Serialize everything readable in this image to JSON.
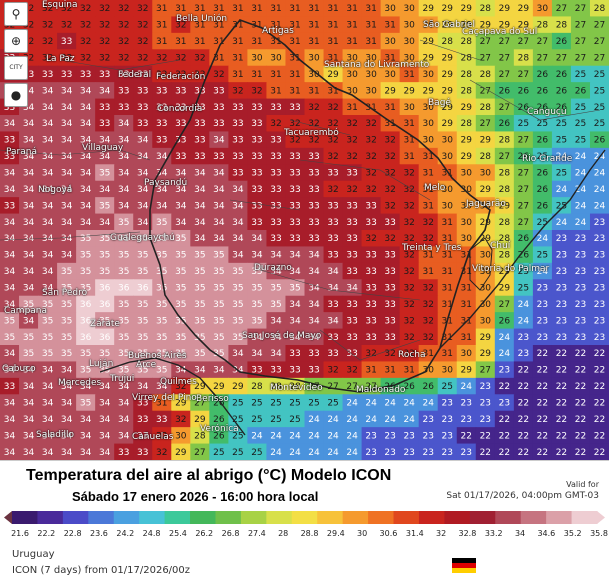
{
  "toolbar": {
    "items": [
      {
        "icon": "location-pin-icon",
        "glyph": "⚲"
      },
      {
        "icon": "zoom-icon",
        "glyph": "⊕"
      },
      {
        "icon": "city-labels-icon",
        "glyph": "CITY"
      },
      {
        "icon": "point-marker-icon",
        "glyph": "●"
      }
    ]
  },
  "map": {
    "places": [
      {
        "name": "Esquina"
      },
      {
        "name": "Bella Unión"
      },
      {
        "name": "La Paz"
      },
      {
        "name": "Artigas"
      },
      {
        "name": "São Gabriel"
      },
      {
        "name": "Caçapava do Sul"
      },
      {
        "name": "Federal"
      },
      {
        "name": "Federación"
      },
      {
        "name": "Santana do Livramento"
      },
      {
        "name": "Bagé"
      },
      {
        "name": "Concordia"
      },
      {
        "name": "Canguçu"
      },
      {
        "name": "Paraná"
      },
      {
        "name": "Villaguay"
      },
      {
        "name": "Tacuarembó"
      },
      {
        "name": "Rio Grande"
      },
      {
        "name": "Paysandú"
      },
      {
        "name": "Nogoyá"
      },
      {
        "name": "Melo"
      },
      {
        "name": "Jaguarão"
      },
      {
        "name": "Gualeguaychú"
      },
      {
        "name": "Treinta y Tres"
      },
      {
        "name": "Durazno"
      },
      {
        "name": "Chuí"
      },
      {
        "name": "San Pedro"
      },
      {
        "name": "Vitoria do Palmar"
      },
      {
        "name": "Zárate"
      },
      {
        "name": "San José de Mayo"
      },
      {
        "name": "Rocha"
      },
      {
        "name": "Buenos Aires"
      },
      {
        "name": "Luján"
      },
      {
        "name": "Arce"
      },
      {
        "name": "Mercedes"
      },
      {
        "name": "Quilmes"
      },
      {
        "name": "Trujui"
      },
      {
        "name": "Montevideo"
      },
      {
        "name": "Maldonado"
      },
      {
        "name": "Berisso"
      },
      {
        "name": "Virrey del Pino"
      },
      {
        "name": "Cañuelas"
      },
      {
        "name": "Verónica"
      },
      {
        "name": "Saladillo"
      },
      {
        "name": "Cabuco"
      },
      {
        "name": "Campana"
      }
    ],
    "grid": [
      [
        32,
        32,
        32,
        32,
        32,
        32,
        32,
        32,
        31,
        31,
        31,
        31,
        31,
        31,
        31,
        31,
        31,
        31,
        31,
        31,
        30,
        30,
        29,
        29,
        29,
        28,
        29,
        29,
        30,
        27,
        27,
        28
      ],
      [
        32,
        32,
        32,
        32,
        32,
        32,
        32,
        32,
        31,
        32,
        31,
        31,
        31,
        31,
        31,
        31,
        31,
        31,
        31,
        31,
        31,
        30,
        30,
        29,
        29,
        29,
        29,
        29,
        28,
        28,
        27,
        27
      ],
      [
        32,
        32,
        32,
        33,
        32,
        32,
        32,
        32,
        31,
        31,
        31,
        31,
        31,
        31,
        31,
        31,
        31,
        31,
        31,
        31,
        30,
        30,
        29,
        28,
        28,
        27,
        27,
        27,
        27,
        26,
        27,
        27
      ],
      [
        33,
        32,
        32,
        32,
        32,
        32,
        32,
        32,
        32,
        32,
        32,
        31,
        31,
        30,
        30,
        31,
        30,
        31,
        30,
        30,
        31,
        30,
        29,
        29,
        28,
        27,
        27,
        28,
        27,
        27,
        27,
        27
      ],
      [
        33,
        33,
        33,
        33,
        33,
        33,
        33,
        33,
        32,
        32,
        32,
        32,
        31,
        31,
        31,
        31,
        30,
        29,
        30,
        30,
        30,
        31,
        30,
        29,
        28,
        28,
        27,
        27,
        26,
        26,
        25,
        25
      ],
      [
        34,
        34,
        34,
        34,
        34,
        34,
        33,
        33,
        33,
        33,
        33,
        33,
        32,
        32,
        31,
        31,
        31,
        31,
        30,
        30,
        29,
        29,
        29,
        29,
        28,
        27,
        26,
        26,
        26,
        26,
        26,
        25
      ],
      [
        33,
        34,
        34,
        34,
        34,
        33,
        33,
        33,
        33,
        33,
        33,
        33,
        33,
        33,
        33,
        33,
        32,
        32,
        31,
        31,
        31,
        30,
        30,
        29,
        29,
        28,
        27,
        26,
        26,
        26,
        25,
        25
      ],
      [
        34,
        34,
        34,
        34,
        34,
        33,
        34,
        33,
        33,
        33,
        33,
        33,
        33,
        33,
        32,
        32,
        32,
        32,
        32,
        32,
        31,
        31,
        30,
        29,
        28,
        27,
        26,
        25,
        25,
        25,
        25,
        25
      ],
      [
        33,
        34,
        34,
        34,
        34,
        34,
        34,
        34,
        33,
        33,
        33,
        34,
        33,
        33,
        33,
        32,
        32,
        32,
        32,
        32,
        32,
        31,
        30,
        30,
        29,
        29,
        28,
        27,
        26,
        25,
        25,
        26
      ],
      [
        33,
        34,
        34,
        34,
        34,
        34,
        34,
        34,
        34,
        33,
        33,
        33,
        33,
        33,
        33,
        33,
        33,
        32,
        32,
        32,
        32,
        31,
        31,
        30,
        29,
        28,
        27,
        26,
        25,
        24,
        24,
        24
      ],
      [
        34,
        34,
        34,
        34,
        34,
        35,
        34,
        34,
        34,
        34,
        34,
        34,
        33,
        33,
        33,
        33,
        33,
        33,
        33,
        32,
        32,
        32,
        31,
        31,
        30,
        30,
        28,
        27,
        26,
        25,
        24,
        24
      ],
      [
        34,
        34,
        34,
        34,
        34,
        34,
        34,
        34,
        34,
        34,
        34,
        34,
        34,
        33,
        33,
        33,
        33,
        32,
        32,
        32,
        32,
        32,
        31,
        30,
        30,
        29,
        28,
        27,
        26,
        24,
        24,
        24
      ],
      [
        33,
        34,
        34,
        34,
        34,
        35,
        34,
        34,
        34,
        34,
        34,
        34,
        34,
        33,
        33,
        33,
        33,
        33,
        33,
        33,
        32,
        32,
        31,
        30,
        30,
        30,
        29,
        27,
        26,
        25,
        24,
        24
      ],
      [
        34,
        34,
        34,
        34,
        34,
        34,
        35,
        34,
        35,
        34,
        34,
        34,
        34,
        33,
        33,
        33,
        33,
        33,
        33,
        33,
        33,
        32,
        32,
        31,
        30,
        29,
        28,
        27,
        25,
        24,
        24,
        23
      ],
      [
        34,
        34,
        34,
        34,
        35,
        35,
        35,
        35,
        35,
        35,
        34,
        34,
        34,
        34,
        33,
        33,
        33,
        33,
        33,
        32,
        32,
        32,
        32,
        31,
        30,
        29,
        28,
        26,
        24,
        23,
        23,
        23
      ],
      [
        34,
        34,
        34,
        34,
        35,
        35,
        35,
        35,
        35,
        35,
        35,
        35,
        34,
        34,
        34,
        34,
        34,
        33,
        33,
        33,
        33,
        32,
        31,
        31,
        31,
        30,
        28,
        26,
        25,
        23,
        23,
        23
      ],
      [
        34,
        34,
        34,
        35,
        35,
        35,
        35,
        35,
        35,
        35,
        35,
        35,
        35,
        35,
        34,
        34,
        34,
        34,
        33,
        33,
        33,
        32,
        31,
        31,
        31,
        30,
        29,
        25,
        24,
        23,
        23,
        23
      ],
      [
        34,
        34,
        34,
        35,
        35,
        36,
        36,
        36,
        35,
        35,
        35,
        35,
        35,
        35,
        35,
        35,
        34,
        34,
        34,
        33,
        33,
        32,
        32,
        31,
        31,
        30,
        29,
        25,
        23,
        23,
        23,
        23
      ],
      [
        34,
        35,
        35,
        35,
        36,
        36,
        35,
        35,
        35,
        35,
        35,
        35,
        35,
        35,
        35,
        34,
        34,
        33,
        33,
        33,
        33,
        32,
        32,
        31,
        31,
        30,
        27,
        24,
        23,
        23,
        23,
        23
      ],
      [
        35,
        34,
        35,
        35,
        36,
        35,
        35,
        35,
        35,
        35,
        35,
        35,
        35,
        35,
        34,
        34,
        34,
        34,
        33,
        33,
        33,
        32,
        32,
        31,
        31,
        30,
        26,
        24,
        23,
        23,
        23,
        23
      ],
      [
        35,
        35,
        35,
        35,
        36,
        36,
        35,
        35,
        35,
        35,
        35,
        35,
        35,
        34,
        34,
        34,
        34,
        33,
        33,
        33,
        33,
        32,
        32,
        31,
        31,
        29,
        24,
        23,
        23,
        23,
        23,
        23
      ],
      [
        34,
        35,
        35,
        35,
        35,
        35,
        35,
        35,
        35,
        35,
        35,
        35,
        34,
        34,
        34,
        33,
        33,
        33,
        33,
        32,
        32,
        32,
        31,
        31,
        30,
        29,
        24,
        23,
        22,
        22,
        22,
        22
      ],
      [
        34,
        34,
        34,
        34,
        35,
        35,
        35,
        35,
        35,
        34,
        34,
        34,
        34,
        33,
        33,
        33,
        33,
        32,
        32,
        31,
        31,
        31,
        30,
        30,
        29,
        27,
        23,
        22,
        22,
        22,
        22,
        22
      ],
      [
        33,
        34,
        34,
        34,
        34,
        34,
        34,
        34,
        34,
        32,
        29,
        29,
        29,
        28,
        28,
        28,
        27,
        27,
        27,
        27,
        26,
        26,
        26,
        25,
        24,
        23,
        22,
        22,
        22,
        22,
        22,
        22
      ],
      [
        34,
        34,
        34,
        34,
        35,
        34,
        34,
        33,
        31,
        29,
        27,
        26,
        25,
        25,
        25,
        25,
        25,
        25,
        24,
        24,
        24,
        24,
        24,
        23,
        23,
        23,
        23,
        22,
        22,
        22,
        22,
        22
      ],
      [
        34,
        34,
        34,
        34,
        34,
        34,
        34,
        33,
        33,
        32,
        29,
        26,
        25,
        25,
        25,
        25,
        24,
        24,
        24,
        24,
        24,
        24,
        23,
        23,
        23,
        23,
        22,
        22,
        22,
        22,
        22,
        22
      ],
      [
        34,
        34,
        34,
        34,
        34,
        34,
        34,
        33,
        32,
        30,
        28,
        26,
        25,
        24,
        24,
        24,
        24,
        24,
        24,
        23,
        23,
        23,
        23,
        23,
        22,
        22,
        22,
        22,
        22,
        22,
        22,
        22
      ],
      [
        34,
        34,
        34,
        34,
        34,
        34,
        33,
        33,
        32,
        29,
        27,
        25,
        25,
        25,
        24,
        24,
        24,
        24,
        24,
        23,
        23,
        23,
        23,
        23,
        23,
        22,
        22,
        22,
        22,
        22,
        22,
        22
      ]
    ]
  },
  "legend": {
    "title": "Temperatura del aire al abrigo (°C)  Modelo ICON",
    "subtitle": "Sábado 17 enero 2026 - 16:00 hora local",
    "valid_label": "Valid for",
    "valid_time": "Sat 01/17/2026, 04:00pm GMT-03",
    "ticks": [
      "21.6",
      "22.2",
      "22.8",
      "23.6",
      "24.2",
      "24.8",
      "25.4",
      "26.2",
      "26.8",
      "27.4",
      "28",
      "28.8",
      "29.4",
      "30",
      "30.6",
      "31.4",
      "32",
      "32.8",
      "33.2",
      "34",
      "34.6",
      "35.2",
      "35.8"
    ],
    "colors": [
      "#3a1a6e",
      "#4a2a9a",
      "#4b4bc8",
      "#4b78d8",
      "#4aa0e0",
      "#47c2d6",
      "#3cc99a",
      "#44b85a",
      "#6fc04a",
      "#a8d245",
      "#d8e04a",
      "#f3df45",
      "#f7c23a",
      "#f59a2e",
      "#ef7224",
      "#e0471e",
      "#c9241e",
      "#b01a22",
      "#a02032",
      "#b04858",
      "#c67480",
      "#dba0a8",
      "#eecdd2"
    ]
  },
  "footer": {
    "region": "Uruguay",
    "model_run": "ICON (7 days) from 01/17/2026/00z",
    "flag_colors": [
      "#000000",
      "#dd0000",
      "#ffce00"
    ]
  }
}
